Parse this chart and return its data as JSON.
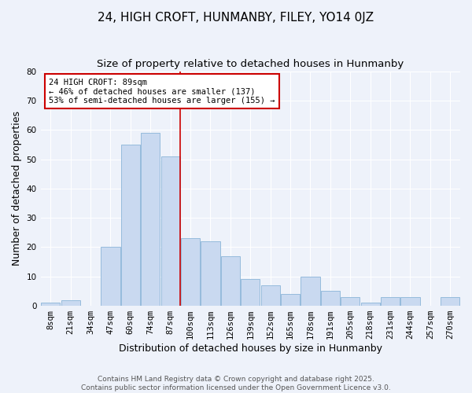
{
  "title": "24, HIGH CROFT, HUNMANBY, FILEY, YO14 0JZ",
  "subtitle": "Size of property relative to detached houses in Hunmanby",
  "xlabel": "Distribution of detached houses by size in Hunmanby",
  "ylabel": "Number of detached properties",
  "bar_labels": [
    "8sqm",
    "21sqm",
    "34sqm",
    "47sqm",
    "60sqm",
    "74sqm",
    "87sqm",
    "100sqm",
    "113sqm",
    "126sqm",
    "139sqm",
    "152sqm",
    "165sqm",
    "178sqm",
    "191sqm",
    "205sqm",
    "218sqm",
    "231sqm",
    "244sqm",
    "257sqm",
    "270sqm"
  ],
  "bar_values": [
    1,
    2,
    0,
    20,
    55,
    59,
    51,
    23,
    22,
    17,
    9,
    7,
    4,
    10,
    5,
    3,
    1,
    3,
    3,
    0,
    3
  ],
  "bar_color": "#c9d9f0",
  "bar_edgecolor": "#8ab4d8",
  "ylim": [
    0,
    80
  ],
  "yticks": [
    0,
    10,
    20,
    30,
    40,
    50,
    60,
    70,
    80
  ],
  "vline_index": 6,
  "vline_color": "#cc0000",
  "annotation_title": "24 HIGH CROFT: 89sqm",
  "annotation_line1": "← 46% of detached houses are smaller (137)",
  "annotation_line2": "53% of semi-detached houses are larger (155) →",
  "annotation_box_edgecolor": "#cc0000",
  "footer1": "Contains HM Land Registry data © Crown copyright and database right 2025.",
  "footer2": "Contains public sector information licensed under the Open Government Licence v3.0.",
  "background_color": "#eef2fa",
  "grid_color": "#ffffff",
  "title_fontsize": 11,
  "subtitle_fontsize": 9.5,
  "axis_label_fontsize": 9,
  "tick_fontsize": 7.5,
  "annotation_fontsize": 7.5,
  "footer_fontsize": 6.5
}
